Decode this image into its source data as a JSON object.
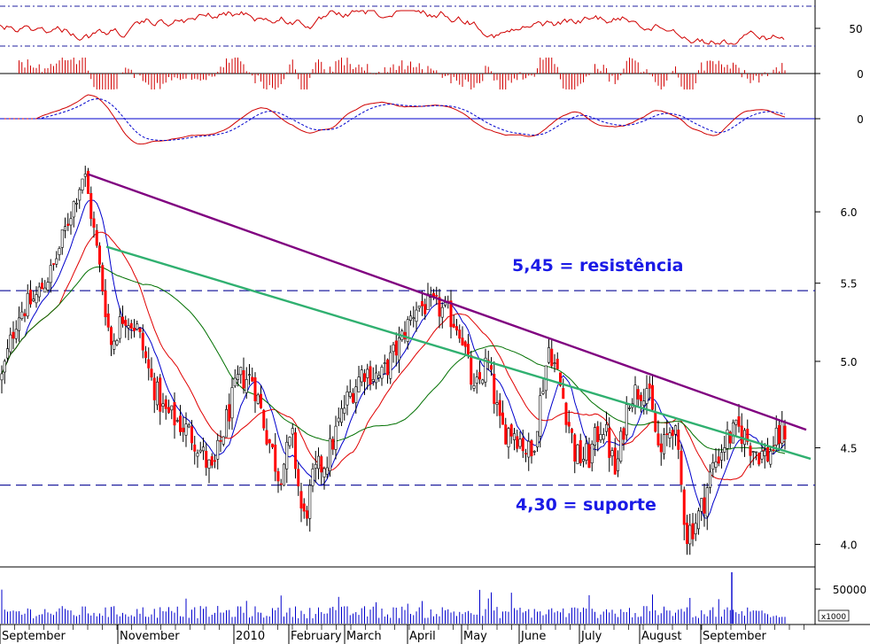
{
  "chart_data": {
    "type": "candlestick",
    "price_axis": {
      "ticks": [
        "6.0",
        "5.5",
        "5.0",
        "4.5",
        "4.0"
      ],
      "ylim": [
        3.9,
        6.5
      ],
      "scale": "log"
    },
    "x_labels": [
      "September",
      "November",
      "2010",
      "February",
      "March",
      "April",
      "May",
      "June",
      "July",
      "August",
      "September"
    ],
    "annotations": {
      "resistance": {
        "label": "5,45 = resistência",
        "value": 5.45
      },
      "support": {
        "label": "4,30 = suporte",
        "value": 4.3
      }
    },
    "trendlines": [
      {
        "name": "purple",
        "points": [
          [
            100,
            6.28
          ],
          [
            910,
            4.6
          ]
        ]
      },
      {
        "name": "green",
        "points": [
          [
            120,
            5.75
          ],
          [
            915,
            4.44
          ]
        ]
      }
    ],
    "panels": {
      "oscillator_ticks": [
        "50"
      ],
      "histogram_ticks": [
        "0"
      ],
      "macd_ticks": [
        "0"
      ],
      "volume_ticks": [
        "50000"
      ],
      "volume_unit": "x1000"
    },
    "close_series_anchors": [
      [
        2,
        4.9
      ],
      [
        20,
        5.3
      ],
      [
        40,
        5.4
      ],
      [
        60,
        5.6
      ],
      [
        80,
        6.0
      ],
      [
        95,
        6.3
      ],
      [
        110,
        5.7
      ],
      [
        125,
        5.1
      ],
      [
        140,
        5.3
      ],
      [
        155,
        5.2
      ],
      [
        170,
        4.9
      ],
      [
        185,
        4.7
      ],
      [
        200,
        4.65
      ],
      [
        220,
        4.55
      ],
      [
        240,
        4.35
      ],
      [
        255,
        4.65
      ],
      [
        270,
        4.9
      ],
      [
        285,
        4.9
      ],
      [
        300,
        4.6
      ],
      [
        315,
        4.35
      ],
      [
        330,
        4.55
      ],
      [
        342,
        4.1
      ],
      [
        355,
        4.35
      ],
      [
        370,
        4.45
      ],
      [
        390,
        4.75
      ],
      [
        410,
        4.95
      ],
      [
        430,
        4.9
      ],
      [
        450,
        5.1
      ],
      [
        470,
        5.35
      ],
      [
        490,
        5.35
      ],
      [
        505,
        5.3
      ],
      [
        520,
        5.2
      ],
      [
        535,
        4.8
      ],
      [
        550,
        5.0
      ],
      [
        565,
        4.6
      ],
      [
        580,
        4.6
      ],
      [
        600,
        4.45
      ],
      [
        620,
        5.1
      ],
      [
        635,
        4.8
      ],
      [
        650,
        4.45
      ],
      [
        665,
        4.45
      ],
      [
        680,
        4.65
      ],
      [
        695,
        4.35
      ],
      [
        710,
        4.8
      ],
      [
        730,
        4.85
      ],
      [
        745,
        4.45
      ],
      [
        760,
        4.65
      ],
      [
        775,
        4.05
      ],
      [
        790,
        4.15
      ],
      [
        805,
        4.4
      ],
      [
        820,
        4.55
      ],
      [
        835,
        4.6
      ],
      [
        850,
        4.5
      ],
      [
        865,
        4.45
      ],
      [
        885,
        4.6
      ]
    ],
    "volume_spike_index": 826
  }
}
